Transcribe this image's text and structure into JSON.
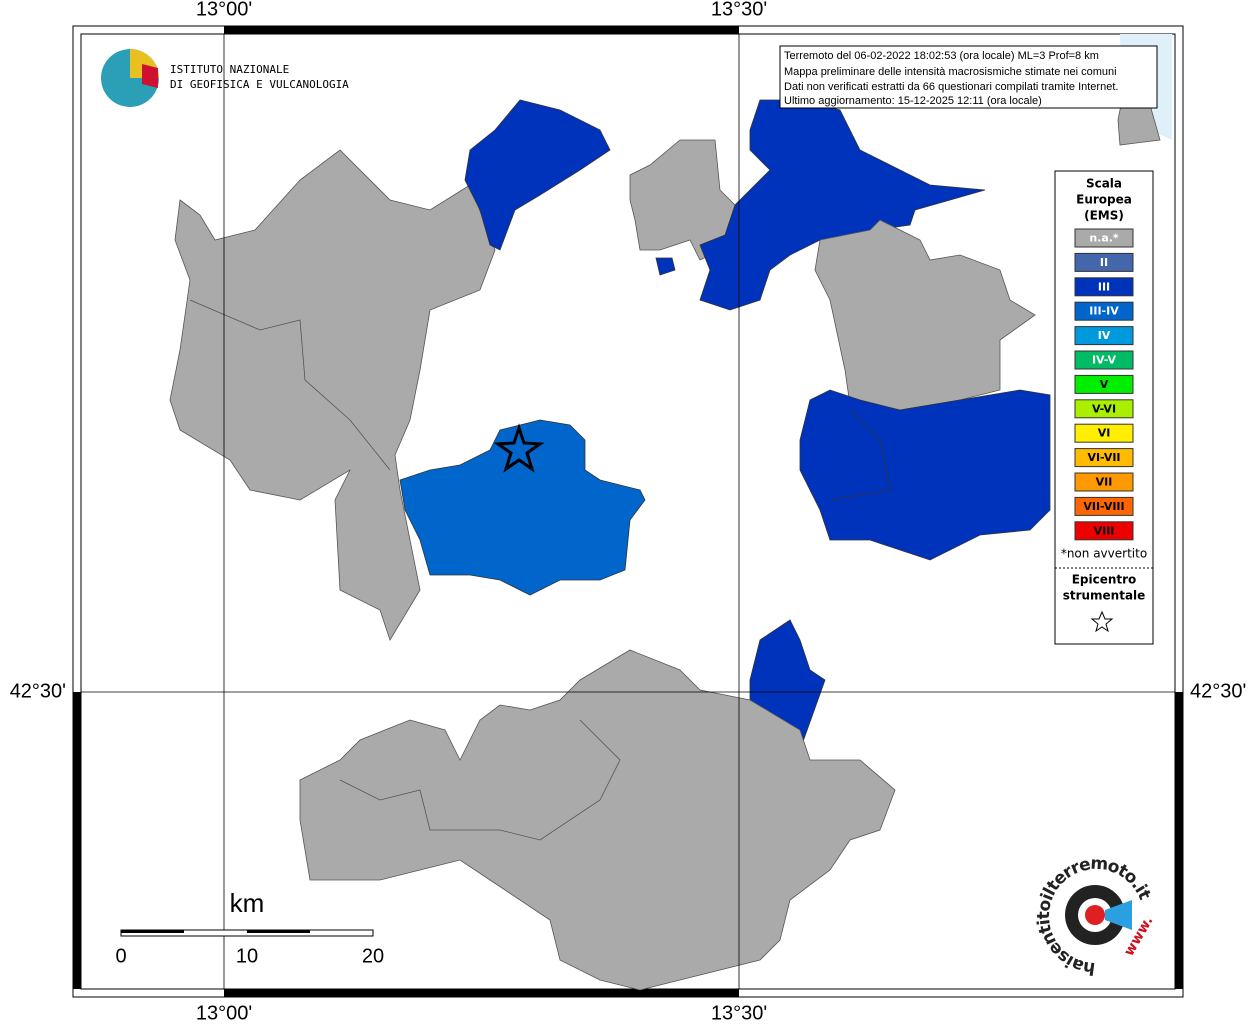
{
  "axes": {
    "top": [
      "13°00'",
      "13°30'"
    ],
    "bottom": [
      "13°00'",
      "13°30'"
    ],
    "left": [
      "42°30'"
    ],
    "right": [
      "42°30'"
    ]
  },
  "info": [
    "Terremoto del 06-02-2022 18:02:53 (ora locale) ML=3 Prof=8 km",
    "Mappa preliminare delle intensità macrosismiche stimate nei comuni",
    "Dati non verificati estratti da 66 questionari compilati tramite Internet.",
    "Ultimo aggiornamento: 15-12-2025 12:11 (ora locale)"
  ],
  "logo": [
    "ISTITUTO NAZIONALE",
    "DI GEOFISICA E VULCANOLOGIA"
  ],
  "legend": {
    "title": [
      "Scala",
      "Europea",
      "(EMS)"
    ],
    "items": [
      {
        "label": "n.a.*",
        "color": "#aaaaaa"
      },
      {
        "label": "II",
        "color": "#4466aa"
      },
      {
        "label": "III",
        "color": "#0033bb"
      },
      {
        "label": "III-IV",
        "color": "#0066cc"
      },
      {
        "label": "IV",
        "color": "#0099dd"
      },
      {
        "label": "IV-V",
        "color": "#00bb66"
      },
      {
        "label": "V",
        "color": "#00ee00"
      },
      {
        "label": "V-VI",
        "color": "#aaee00"
      },
      {
        "label": "VI",
        "color": "#ffee00"
      },
      {
        "label": "VI-VII",
        "color": "#ffbb00"
      },
      {
        "label": "VII",
        "color": "#ff9900"
      },
      {
        "label": "VII-VIII",
        "color": "#ff6600"
      },
      {
        "label": "VIII",
        "color": "#ee0000"
      }
    ],
    "note": "*non avvertito",
    "epicenter": [
      "Epicentro",
      "strumentale"
    ]
  },
  "scale": {
    "unit": "km",
    "labels": [
      "0",
      "10",
      "20"
    ]
  },
  "watermark": {
    "site": "haisentitoilterremoto.it",
    "prefix": "www."
  }
}
